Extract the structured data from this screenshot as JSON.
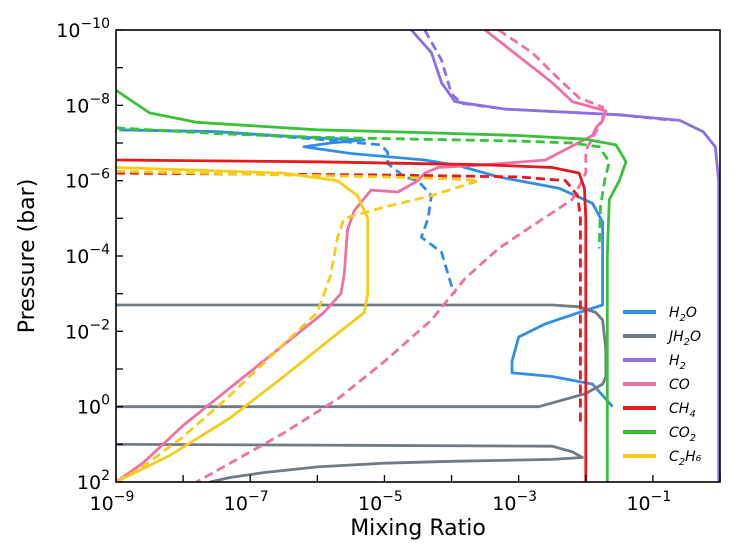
{
  "chart_data": {
    "type": "line",
    "title": "",
    "xlabel": "Mixing Ratio",
    "ylabel": "Pressure (bar)",
    "xscale": "log",
    "yscale": "log",
    "xlim": [
      1e-09,
      1
    ],
    "ylim": [
      100,
      1e-10
    ],
    "y_inverted": true,
    "grid": false,
    "legend_position": "lower-right",
    "x_ticks": [
      {
        "exp": -9,
        "label": "10",
        "sup": "−9"
      },
      {
        "exp": -7,
        "label": "10",
        "sup": "−7"
      },
      {
        "exp": -5,
        "label": "10",
        "sup": "−5"
      },
      {
        "exp": -3,
        "label": "10",
        "sup": "−3"
      },
      {
        "exp": -1,
        "label": "10",
        "sup": "−1"
      }
    ],
    "y_ticks": [
      {
        "exp": -10,
        "label": "10",
        "sup": "−10"
      },
      {
        "exp": -8,
        "label": "10",
        "sup": "−8"
      },
      {
        "exp": -6,
        "label": "10",
        "sup": "−6"
      },
      {
        "exp": -4,
        "label": "10",
        "sup": "−4"
      },
      {
        "exp": -2,
        "label": "10",
        "sup": "−2"
      },
      {
        "exp": 0,
        "label": "10",
        "sup": "0"
      },
      {
        "exp": 2,
        "label": "10",
        "sup": "2"
      }
    ],
    "series": [
      {
        "name": "H2O",
        "label_base": "H",
        "label_sub": "2",
        "label_tail": "O",
        "color": "#2f8fe8",
        "style": "solid",
        "points": [
          [
            -8.95,
            -7.35
          ],
          [
            -7.5,
            -7.3
          ],
          [
            -6.2,
            -7.15
          ],
          [
            -5.3,
            -7.08
          ],
          [
            -5.8,
            -7.0
          ],
          [
            -6.2,
            -6.9
          ],
          [
            -5.5,
            -6.72
          ],
          [
            -4.4,
            -6.55
          ],
          [
            -3.9,
            -6.4
          ],
          [
            -3.3,
            -6.1
          ],
          [
            -2.4,
            -5.8
          ],
          [
            -1.9,
            -5.4
          ],
          [
            -1.75,
            -4.9
          ],
          [
            -1.75,
            -2.7
          ],
          [
            -2.1,
            -2.5
          ],
          [
            -2.6,
            -2.2
          ],
          [
            -3.0,
            -1.85
          ],
          [
            -3.1,
            -1.2
          ],
          [
            -3.1,
            -0.9
          ],
          [
            -2.5,
            -0.8
          ],
          [
            -1.9,
            -0.6
          ],
          [
            -1.75,
            -0.3
          ],
          [
            -1.6,
            0.0
          ]
        ]
      },
      {
        "name": "H2O (dashed)",
        "color": "#2f8fe8",
        "style": "dashed",
        "points": [
          [
            -8.95,
            -7.35
          ],
          [
            -7.5,
            -7.3
          ],
          [
            -6.0,
            -7.1
          ],
          [
            -5.05,
            -6.95
          ],
          [
            -4.95,
            -6.75
          ],
          [
            -4.95,
            -6.45
          ],
          [
            -4.7,
            -6.1
          ],
          [
            -4.5,
            -6.0
          ],
          [
            -4.3,
            -5.6
          ],
          [
            -4.35,
            -5.0
          ],
          [
            -4.45,
            -4.5
          ],
          [
            -4.15,
            -4.1
          ],
          [
            -4.0,
            -3.2
          ],
          [
            -3.95,
            -3.0
          ]
        ]
      },
      {
        "name": "JH2O",
        "label_base": "JH",
        "label_sub": "2",
        "label_tail": "O",
        "color": "#6f7b86",
        "style": "solid",
        "points": [
          [
            -9,
            -2.7
          ],
          [
            -2.5,
            -2.7
          ],
          [
            -2.1,
            -2.65
          ],
          [
            -1.85,
            -2.5
          ],
          [
            -1.75,
            -2.3
          ],
          [
            -1.7,
            -1.5
          ],
          [
            -1.7,
            -0.8
          ],
          [
            -1.75,
            -0.6
          ],
          [
            -2.0,
            -0.35
          ],
          [
            -2.7,
            0.0
          ],
          [
            -9,
            0.0
          ]
        ]
      },
      {
        "name": "JH2O (lower)",
        "color": "#6f7b86",
        "style": "solid",
        "points": [
          [
            -9,
            1.0
          ],
          [
            -2.5,
            1.05
          ],
          [
            -2.2,
            1.2
          ],
          [
            -2.05,
            1.35
          ],
          [
            -2.5,
            1.4
          ],
          [
            -4.0,
            1.45
          ],
          [
            -5.0,
            1.5
          ],
          [
            -6.0,
            1.6
          ],
          [
            -6.8,
            1.75
          ],
          [
            -7.3,
            1.88
          ],
          [
            -7.6,
            2.0
          ]
        ]
      },
      {
        "name": "H2",
        "label_base": "H",
        "label_sub": "2",
        "label_tail": "",
        "color": "#8e6ee3",
        "style": "solid",
        "points": [
          [
            -4.6,
            -10.0
          ],
          [
            -4.3,
            -9.4
          ],
          [
            -4.15,
            -8.6
          ],
          [
            -3.95,
            -8.1
          ],
          [
            -3.2,
            -7.9
          ],
          [
            -1.5,
            -7.75
          ],
          [
            -0.6,
            -7.6
          ],
          [
            -0.25,
            -7.3
          ],
          [
            -0.07,
            -6.9
          ],
          [
            -0.02,
            -6.0
          ],
          [
            -0.02,
            2.0
          ]
        ]
      },
      {
        "name": "H2 (dashed)",
        "color": "#8e6ee3",
        "style": "dashed",
        "points": [
          [
            -4.4,
            -10.0
          ],
          [
            -4.15,
            -9.2
          ],
          [
            -4.0,
            -8.3
          ],
          [
            -3.85,
            -8.05
          ],
          [
            -3.2,
            -7.9
          ],
          [
            -1.5,
            -7.75
          ],
          [
            -0.7,
            -7.6
          ]
        ]
      },
      {
        "name": "CO",
        "label_base": "CO",
        "label_sub": "",
        "label_tail": "",
        "color": "#f26fa6",
        "style": "solid",
        "points": [
          [
            -3.5,
            -10.0
          ],
          [
            -3.0,
            -9.3
          ],
          [
            -2.5,
            -8.6
          ],
          [
            -2.2,
            -8.1
          ],
          [
            -1.7,
            -7.85
          ],
          [
            -1.75,
            -7.6
          ],
          [
            -1.85,
            -7.4
          ],
          [
            -1.9,
            -7.2
          ],
          [
            -2.6,
            -6.55
          ],
          [
            -3.5,
            -6.42
          ],
          [
            -4.2,
            -6.35
          ],
          [
            -4.4,
            -6.2
          ],
          [
            -4.5,
            -6.0
          ],
          [
            -4.8,
            -5.7
          ],
          [
            -5.2,
            -5.75
          ],
          [
            -5.45,
            -5.2
          ],
          [
            -5.55,
            -4.7
          ],
          [
            -5.6,
            -3.5
          ],
          [
            -5.65,
            -3.0
          ],
          [
            -5.9,
            -2.5
          ],
          [
            -6.6,
            -1.5
          ],
          [
            -7.3,
            -0.5
          ],
          [
            -8.0,
            0.5
          ],
          [
            -8.6,
            1.5
          ],
          [
            -9,
            2.0
          ]
        ]
      },
      {
        "name": "CO (dashed)",
        "color": "#f26fa6",
        "style": "dashed",
        "points": [
          [
            -3.3,
            -10.0
          ],
          [
            -2.8,
            -9.4
          ],
          [
            -2.4,
            -8.7
          ],
          [
            -2.1,
            -8.2
          ],
          [
            -1.75,
            -7.95
          ],
          [
            -1.75,
            -7.6
          ],
          [
            -1.85,
            -7.3
          ],
          [
            -2.0,
            -6.8
          ],
          [
            -2.0,
            -6.2
          ],
          [
            -2.2,
            -5.5
          ],
          [
            -2.8,
            -4.8
          ],
          [
            -3.3,
            -4.2
          ],
          [
            -3.8,
            -3.4
          ],
          [
            -4.3,
            -2.3
          ],
          [
            -5.0,
            -1.2
          ],
          [
            -5.7,
            -0.2
          ],
          [
            -6.5,
            0.7
          ],
          [
            -7.3,
            1.5
          ],
          [
            -7.8,
            2.0
          ]
        ]
      },
      {
        "name": "CH4",
        "label_base": "CH",
        "label_sub": "4",
        "label_tail": "",
        "color": "#e8181e",
        "style": "solid",
        "points": [
          [
            -9,
            -6.55
          ],
          [
            -6.0,
            -6.5
          ],
          [
            -3.5,
            -6.42
          ],
          [
            -2.5,
            -6.35
          ],
          [
            -2.1,
            -6.2
          ],
          [
            -2.02,
            -5.8
          ],
          [
            -2.0,
            -5.0
          ],
          [
            -2.0,
            2.0
          ]
        ]
      },
      {
        "name": "CH4 (dashed)",
        "color": "#e8181e",
        "style": "dashed",
        "points": [
          [
            -9,
            -6.2
          ],
          [
            -5.0,
            -6.15
          ],
          [
            -3.0,
            -6.1
          ],
          [
            -2.3,
            -6.0
          ],
          [
            -2.12,
            -5.6
          ],
          [
            -2.08,
            -5.0
          ],
          [
            -2.08,
            0.5
          ]
        ]
      },
      {
        "name": "CO2",
        "label_base": "CO",
        "label_sub": "2",
        "label_tail": "",
        "color": "#38c238",
        "style": "solid",
        "points": [
          [
            -9,
            -8.4
          ],
          [
            -8.5,
            -7.8
          ],
          [
            -7.8,
            -7.55
          ],
          [
            -6.0,
            -7.35
          ],
          [
            -4.5,
            -7.28
          ],
          [
            -3.0,
            -7.2
          ],
          [
            -2.0,
            -7.1
          ],
          [
            -1.55,
            -6.95
          ],
          [
            -1.4,
            -6.5
          ],
          [
            -1.5,
            -6.0
          ],
          [
            -1.65,
            -5.5
          ],
          [
            -1.68,
            -4.0
          ],
          [
            -1.68,
            2.0
          ]
        ]
      },
      {
        "name": "CO2 (dashed)",
        "color": "#38c238",
        "style": "dashed",
        "points": [
          [
            -9,
            -7.4
          ],
          [
            -7.5,
            -7.25
          ],
          [
            -6.0,
            -7.15
          ],
          [
            -3.0,
            -7.05
          ],
          [
            -2.2,
            -7.0
          ],
          [
            -1.8,
            -6.9
          ],
          [
            -1.65,
            -6.5
          ],
          [
            -1.72,
            -6.0
          ],
          [
            -1.78,
            -5.3
          ],
          [
            -1.8,
            -4.2
          ]
        ]
      },
      {
        "name": "C2H6",
        "label_base": "C",
        "label_sub": "2",
        "label_tail": "H₆",
        "color": "#f7cb1a",
        "style": "solid",
        "points": [
          [
            -9,
            -6.35
          ],
          [
            -6.5,
            -6.2
          ],
          [
            -5.7,
            -6.0
          ],
          [
            -5.4,
            -5.6
          ],
          [
            -5.25,
            -5.0
          ],
          [
            -5.25,
            -4.0
          ],
          [
            -5.25,
            -3.0
          ],
          [
            -5.3,
            -2.5
          ],
          [
            -5.8,
            -1.8
          ],
          [
            -6.5,
            -0.8
          ],
          [
            -7.3,
            0.3
          ],
          [
            -8.2,
            1.3
          ],
          [
            -9,
            2.0
          ]
        ]
      },
      {
        "name": "C2H6 (dashed)",
        "color": "#f7cb1a",
        "style": "dashed",
        "points": [
          [
            -9,
            -6.25
          ],
          [
            -6.5,
            -6.15
          ],
          [
            -5.0,
            -6.1
          ],
          [
            -4.0,
            -6.05
          ],
          [
            -3.6,
            -6.0
          ],
          [
            -4.3,
            -5.6
          ],
          [
            -5.0,
            -5.3
          ],
          [
            -5.6,
            -5.0
          ],
          [
            -5.7,
            -4.5
          ],
          [
            -5.8,
            -3.5
          ],
          [
            -6.0,
            -2.5
          ],
          [
            -6.6,
            -1.5
          ],
          [
            -7.3,
            -0.3
          ],
          [
            -8.0,
            0.8
          ],
          [
            -8.6,
            1.6
          ],
          [
            -9,
            2.0
          ]
        ]
      }
    ]
  }
}
